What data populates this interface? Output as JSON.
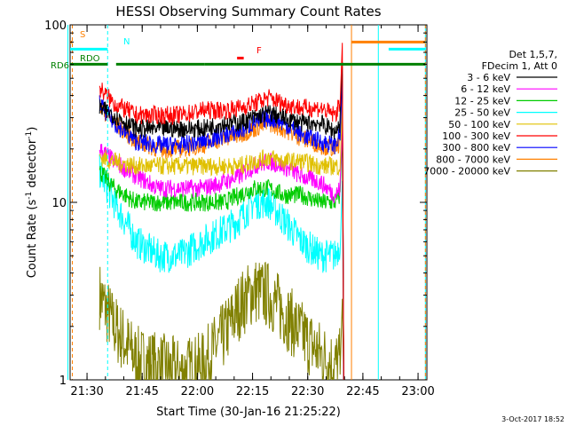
{
  "chart_data": {
    "type": "line",
    "title": "HESSI Observing Summary Count Rates",
    "xlabel": "Start Time (30-Jan-16 21:25:22)",
    "ylabel_main": "Count Rate (s",
    "ylabel_sup1": "-1",
    "ylabel_mid": " detector",
    "ylabel_sup2": "-1",
    "ylabel_end": ")",
    "x_unit": "minutes after 21:25:22",
    "xlim": [
      0,
      97
    ],
    "ylim": [
      1,
      100
    ],
    "y_scale": "log",
    "x_ticks": [
      {
        "label": "21:30",
        "value": 4.6
      },
      {
        "label": "21:45",
        "value": 19.6
      },
      {
        "label": "22:00",
        "value": 34.6
      },
      {
        "label": "22:15",
        "value": 49.6
      },
      {
        "label": "22:30",
        "value": 64.6
      },
      {
        "label": "22:45",
        "value": 79.6
      },
      {
        "label": "23:00",
        "value": 94.6
      }
    ],
    "y_ticks": [
      {
        "label": "1",
        "value": 1
      },
      {
        "label": "10",
        "value": 10
      },
      {
        "label": "100",
        "value": 100
      }
    ],
    "legend_title_1": "Det 1,5,7,",
    "legend_title_2": "FDecim 1, Att 0",
    "legend_position": "right",
    "series": [
      {
        "name": "3 - 6 keV",
        "color": "#000000",
        "points": [
          [
            8,
            34
          ],
          [
            12,
            31
          ],
          [
            18,
            26
          ],
          [
            24,
            26
          ],
          [
            30,
            26
          ],
          [
            36,
            26
          ],
          [
            42,
            28
          ],
          [
            46,
            28
          ],
          [
            50,
            30
          ],
          [
            54,
            32
          ],
          [
            58,
            30
          ],
          [
            63,
            28
          ],
          [
            68,
            28
          ],
          [
            72,
            25
          ],
          [
            73.5,
            28
          ]
        ]
      },
      {
        "name": "6 - 12 keV",
        "color": "#ff00ff",
        "points": [
          [
            8,
            20
          ],
          [
            12,
            17
          ],
          [
            18,
            14
          ],
          [
            24,
            12
          ],
          [
            30,
            12
          ],
          [
            36,
            12
          ],
          [
            42,
            13
          ],
          [
            46,
            14
          ],
          [
            50,
            16
          ],
          [
            54,
            17
          ],
          [
            58,
            16
          ],
          [
            63,
            14
          ],
          [
            68,
            13
          ],
          [
            72,
            11
          ],
          [
            73.5,
            12
          ]
        ]
      },
      {
        "name": "12 - 25 keV",
        "color": "#00cc00",
        "points": [
          [
            8,
            15
          ],
          [
            12,
            12
          ],
          [
            18,
            10
          ],
          [
            24,
            10
          ],
          [
            30,
            10
          ],
          [
            36,
            10
          ],
          [
            42,
            10
          ],
          [
            46,
            11
          ],
          [
            50,
            12
          ],
          [
            54,
            12
          ],
          [
            58,
            11
          ],
          [
            63,
            11
          ],
          [
            68,
            10
          ],
          [
            72,
            10
          ],
          [
            73.5,
            11
          ]
        ]
      },
      {
        "name": "25 - 50 keV",
        "color": "#00ffff",
        "points": [
          [
            8,
            15
          ],
          [
            12,
            10
          ],
          [
            18,
            6
          ],
          [
            24,
            5
          ],
          [
            30,
            5
          ],
          [
            36,
            6
          ],
          [
            42,
            7
          ],
          [
            46,
            8
          ],
          [
            50,
            10
          ],
          [
            54,
            10
          ],
          [
            58,
            8
          ],
          [
            63,
            6
          ],
          [
            68,
            5
          ],
          [
            72,
            5
          ],
          [
            73.5,
            6
          ]
        ]
      },
      {
        "name": "50 - 100 keV",
        "color": "#e0c000",
        "points": [
          [
            8,
            18
          ],
          [
            12,
            17
          ],
          [
            18,
            16
          ],
          [
            24,
            16
          ],
          [
            30,
            16
          ],
          [
            36,
            16
          ],
          [
            42,
            16
          ],
          [
            46,
            16
          ],
          [
            50,
            17
          ],
          [
            54,
            18
          ],
          [
            58,
            17
          ],
          [
            63,
            17
          ],
          [
            68,
            16
          ],
          [
            72,
            16
          ],
          [
            73.5,
            16
          ]
        ]
      },
      {
        "name": "100 - 300 keV",
        "color": "#ff0000",
        "points": [
          [
            8,
            44
          ],
          [
            12,
            36
          ],
          [
            18,
            31
          ],
          [
            24,
            31
          ],
          [
            30,
            31
          ],
          [
            36,
            33
          ],
          [
            42,
            33
          ],
          [
            46,
            34
          ],
          [
            50,
            36
          ],
          [
            54,
            39
          ],
          [
            58,
            36
          ],
          [
            63,
            34
          ],
          [
            68,
            34
          ],
          [
            72,
            31
          ],
          [
            73.5,
            36
          ]
        ]
      },
      {
        "name": "300 - 800 keV",
        "color": "#0000ff",
        "points": [
          [
            8,
            36
          ],
          [
            12,
            28
          ],
          [
            18,
            22
          ],
          [
            24,
            21
          ],
          [
            30,
            21
          ],
          [
            36,
            22
          ],
          [
            42,
            24
          ],
          [
            46,
            25
          ],
          [
            50,
            28
          ],
          [
            54,
            30
          ],
          [
            58,
            28
          ],
          [
            63,
            24
          ],
          [
            68,
            22
          ],
          [
            72,
            21
          ],
          [
            73.5,
            24
          ]
        ]
      },
      {
        "name": "800 - 7000 keV",
        "color": "#ff8000",
        "points": [
          [
            8,
            35
          ],
          [
            12,
            28
          ],
          [
            18,
            22
          ],
          [
            24,
            20
          ],
          [
            30,
            20
          ],
          [
            36,
            21
          ],
          [
            42,
            23
          ],
          [
            46,
            24
          ],
          [
            50,
            26
          ],
          [
            54,
            28
          ],
          [
            58,
            26
          ],
          [
            63,
            23
          ],
          [
            68,
            21
          ],
          [
            72,
            20
          ],
          [
            73.5,
            22
          ]
        ]
      },
      {
        "name": "7000 - 20000 keV",
        "color": "#808000",
        "points": [
          [
            8,
            3
          ],
          [
            12,
            2
          ],
          [
            18,
            1.3
          ],
          [
            24,
            1.2
          ],
          [
            30,
            1.1
          ],
          [
            36,
            1.2
          ],
          [
            42,
            1.8
          ],
          [
            46,
            2.6
          ],
          [
            50,
            3.2
          ],
          [
            54,
            3.0
          ],
          [
            58,
            2.4
          ],
          [
            63,
            1.8
          ],
          [
            68,
            1.4
          ],
          [
            72,
            1.2
          ],
          [
            73.5,
            1.3
          ]
        ]
      }
    ],
    "flag_bars": [
      {
        "label": "S",
        "color": "#ff8000",
        "y": 80,
        "segments": [
          [
            0,
            0.6
          ]
        ]
      },
      {
        "label": "N",
        "color": "#00ffff",
        "y": 73,
        "segments": [
          [
            0,
            10.2
          ],
          [
            86.6,
            96.6
          ]
        ]
      },
      {
        "label": "RDO",
        "color": "#008000",
        "y": 60,
        "segments": [
          [
            0,
            10.2
          ],
          [
            12.5,
            36.5
          ],
          [
            36.5,
            52
          ],
          [
            52,
            96.6
          ]
        ]
      },
      {
        "label": "RD6",
        "color": "#008000",
        "y": 60,
        "segments": []
      },
      {
        "label": "F",
        "color": "#ff0000",
        "y": 65,
        "segments": [
          [
            45.4,
            47.2
          ]
        ]
      }
    ],
    "orange_bar": {
      "color": "#ff8000",
      "y": 80,
      "segments": [
        [
          76.5,
          96.6
        ]
      ]
    },
    "vertical_markers": [
      {
        "x": 0.6,
        "color": "#ff8000",
        "style": "dashed"
      },
      {
        "x": -0.6,
        "color": "#00ffff",
        "style": "solid"
      },
      {
        "x": 10.2,
        "color": "#00ffff",
        "style": "dashed"
      },
      {
        "x": 76.5,
        "color": "#ff8000",
        "style": "solid"
      },
      {
        "x": 83.8,
        "color": "#00ffff",
        "style": "solid"
      },
      {
        "x": 96.6,
        "color": "#00ffff",
        "style": "solid"
      },
      {
        "x": 96.6,
        "color": "#ff8000",
        "style": "dashed"
      }
    ],
    "timestamp": "3-Oct-2017 18:52",
    "grid": false
  }
}
